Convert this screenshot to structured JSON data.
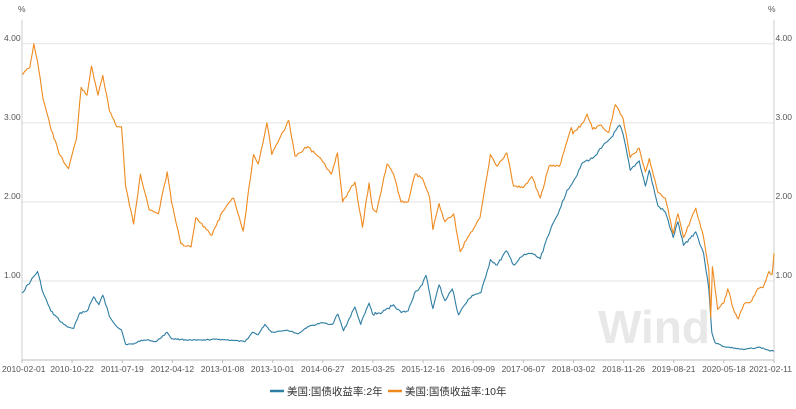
{
  "chart_data": {
    "type": "line",
    "title": "",
    "xlabel": "",
    "ylabel": "",
    "y_unit_left": "%",
    "y_unit_right": "%",
    "ylim": [
      0,
      4.2
    ],
    "y_ticks": [
      {
        "value": 1.0,
        "label": "1.00"
      },
      {
        "value": 2.0,
        "label": "2.00"
      },
      {
        "value": 3.0,
        "label": "3.00"
      },
      {
        "value": 4.0,
        "label": "4.00"
      }
    ],
    "x_range": [
      "2010-02-01",
      "2021-02-11"
    ],
    "x_ticks": [
      "2010-02-01",
      "2010-10-22",
      "2011-07-19",
      "2012-04-12",
      "2013-01-08",
      "2013-10-01",
      "2014-06-27",
      "2015-03-25",
      "2015-12-16",
      "2016-09-09",
      "2017-06-07",
      "2018-03-02",
      "2018-11-26",
      "2019-08-21",
      "2020-05-18",
      "2021-02-11"
    ],
    "grid": true,
    "legend_position": "bottom",
    "watermark": "Wind",
    "series": [
      {
        "name": "美国:国债收益率:2年",
        "color": "#2e7ea3",
        "points": [
          [
            "2010-02-01",
            0.85
          ],
          [
            "2010-03-20",
            1.0
          ],
          [
            "2010-04-25",
            1.12
          ],
          [
            "2010-05-25",
            0.85
          ],
          [
            "2010-07-05",
            0.62
          ],
          [
            "2010-08-20",
            0.5
          ],
          [
            "2010-10-01",
            0.42
          ],
          [
            "2010-11-05",
            0.4
          ],
          [
            "2010-12-10",
            0.6
          ],
          [
            "2011-01-15",
            0.62
          ],
          [
            "2011-02-20",
            0.8
          ],
          [
            "2011-03-20",
            0.7
          ],
          [
            "2011-04-10",
            0.82
          ],
          [
            "2011-05-15",
            0.55
          ],
          [
            "2011-06-25",
            0.42
          ],
          [
            "2011-07-19",
            0.38
          ],
          [
            "2011-08-10",
            0.2
          ],
          [
            "2011-09-20",
            0.2
          ],
          [
            "2011-11-01",
            0.25
          ],
          [
            "2011-12-15",
            0.25
          ],
          [
            "2012-01-20",
            0.23
          ],
          [
            "2012-03-20",
            0.35
          ],
          [
            "2012-04-12",
            0.27
          ],
          [
            "2012-06-01",
            0.26
          ],
          [
            "2012-08-01",
            0.25
          ],
          [
            "2012-09-25",
            0.25
          ],
          [
            "2012-11-15",
            0.26
          ],
          [
            "2013-01-08",
            0.26
          ],
          [
            "2013-03-01",
            0.25
          ],
          [
            "2013-05-10",
            0.23
          ],
          [
            "2013-06-20",
            0.35
          ],
          [
            "2013-07-20",
            0.32
          ],
          [
            "2013-08-25",
            0.45
          ],
          [
            "2013-10-01",
            0.35
          ],
          [
            "2013-12-20",
            0.38
          ],
          [
            "2014-02-20",
            0.33
          ],
          [
            "2014-04-10",
            0.42
          ],
          [
            "2014-06-27",
            0.47
          ],
          [
            "2014-08-20",
            0.45
          ],
          [
            "2014-09-20",
            0.58
          ],
          [
            "2014-10-20",
            0.37
          ],
          [
            "2014-12-20",
            0.67
          ],
          [
            "2015-01-20",
            0.45
          ],
          [
            "2015-03-06",
            0.72
          ],
          [
            "2015-03-25",
            0.58
          ],
          [
            "2015-05-15",
            0.6
          ],
          [
            "2015-07-15",
            0.7
          ],
          [
            "2015-08-25",
            0.6
          ],
          [
            "2015-10-01",
            0.62
          ],
          [
            "2015-11-05",
            0.85
          ],
          [
            "2015-12-16",
            0.95
          ],
          [
            "2016-01-05",
            1.07
          ],
          [
            "2016-02-11",
            0.65
          ],
          [
            "2016-03-15",
            0.95
          ],
          [
            "2016-04-15",
            0.75
          ],
          [
            "2016-05-25",
            0.9
          ],
          [
            "2016-06-27",
            0.57
          ],
          [
            "2016-07-25",
            0.68
          ],
          [
            "2016-09-09",
            0.82
          ],
          [
            "2016-10-25",
            0.85
          ],
          [
            "2016-11-20",
            1.05
          ],
          [
            "2016-12-15",
            1.27
          ],
          [
            "2017-01-20",
            1.2
          ],
          [
            "2017-03-10",
            1.38
          ],
          [
            "2017-04-20",
            1.2
          ],
          [
            "2017-06-07",
            1.32
          ],
          [
            "2017-07-25",
            1.35
          ],
          [
            "2017-09-08",
            1.28
          ],
          [
            "2017-10-15",
            1.55
          ],
          [
            "2017-12-20",
            1.9
          ],
          [
            "2018-01-30",
            2.15
          ],
          [
            "2018-03-02",
            2.25
          ],
          [
            "2018-04-25",
            2.5
          ],
          [
            "2018-06-15",
            2.55
          ],
          [
            "2018-08-01",
            2.68
          ],
          [
            "2018-09-25",
            2.82
          ],
          [
            "2018-11-08",
            2.97
          ],
          [
            "2018-11-26",
            2.85
          ],
          [
            "2019-01-03",
            2.4
          ],
          [
            "2019-02-20",
            2.52
          ],
          [
            "2019-03-25",
            2.2
          ],
          [
            "2019-04-15",
            2.4
          ],
          [
            "2019-05-31",
            1.95
          ],
          [
            "2019-07-10",
            1.87
          ],
          [
            "2019-08-21",
            1.55
          ],
          [
            "2019-09-15",
            1.75
          ],
          [
            "2019-10-15",
            1.45
          ],
          [
            "2019-12-20",
            1.62
          ],
          [
            "2020-01-31",
            1.35
          ],
          [
            "2020-02-28",
            0.9
          ],
          [
            "2020-03-15",
            0.35
          ],
          [
            "2020-04-01",
            0.22
          ],
          [
            "2020-05-18",
            0.17
          ],
          [
            "2020-07-15",
            0.15
          ],
          [
            "2020-09-01",
            0.13
          ],
          [
            "2020-10-15",
            0.15
          ],
          [
            "2020-12-01",
            0.16
          ],
          [
            "2021-01-15",
            0.12
          ],
          [
            "2021-02-11",
            0.11
          ]
        ]
      },
      {
        "name": "美国:国债收益率:10年",
        "color": "#ee8a1e",
        "points": [
          [
            "2010-02-01",
            3.62
          ],
          [
            "2010-03-15",
            3.7
          ],
          [
            "2010-04-05",
            4.0
          ],
          [
            "2010-04-25",
            3.78
          ],
          [
            "2010-05-25",
            3.3
          ],
          [
            "2010-07-01",
            2.97
          ],
          [
            "2010-08-20",
            2.6
          ],
          [
            "2010-10-08",
            2.42
          ],
          [
            "2010-10-22",
            2.55
          ],
          [
            "2010-11-20",
            2.8
          ],
          [
            "2010-12-15",
            3.45
          ],
          [
            "2011-01-15",
            3.35
          ],
          [
            "2011-02-08",
            3.72
          ],
          [
            "2011-03-15",
            3.35
          ],
          [
            "2011-04-10",
            3.6
          ],
          [
            "2011-05-15",
            3.15
          ],
          [
            "2011-06-25",
            2.95
          ],
          [
            "2011-07-19",
            2.95
          ],
          [
            "2011-08-10",
            2.2
          ],
          [
            "2011-09-22",
            1.72
          ],
          [
            "2011-10-28",
            2.35
          ],
          [
            "2011-12-15",
            1.9
          ],
          [
            "2012-02-01",
            1.85
          ],
          [
            "2012-03-20",
            2.38
          ],
          [
            "2012-04-12",
            2.0
          ],
          [
            "2012-06-01",
            1.47
          ],
          [
            "2012-07-25",
            1.43
          ],
          [
            "2012-08-20",
            1.8
          ],
          [
            "2012-10-15",
            1.65
          ],
          [
            "2012-11-15",
            1.58
          ],
          [
            "2013-01-08",
            1.87
          ],
          [
            "2013-03-10",
            2.05
          ],
          [
            "2013-05-01",
            1.63
          ],
          [
            "2013-06-25",
            2.6
          ],
          [
            "2013-07-20",
            2.48
          ],
          [
            "2013-09-05",
            3.0
          ],
          [
            "2013-10-01",
            2.6
          ],
          [
            "2013-12-31",
            3.03
          ],
          [
            "2014-02-03",
            2.58
          ],
          [
            "2014-04-10",
            2.7
          ],
          [
            "2014-06-27",
            2.52
          ],
          [
            "2014-08-15",
            2.35
          ],
          [
            "2014-09-18",
            2.62
          ],
          [
            "2014-10-15",
            2.0
          ],
          [
            "2014-12-20",
            2.25
          ],
          [
            "2015-01-30",
            1.68
          ],
          [
            "2015-03-06",
            2.24
          ],
          [
            "2015-03-25",
            1.92
          ],
          [
            "2015-04-15",
            1.87
          ],
          [
            "2015-06-10",
            2.48
          ],
          [
            "2015-07-15",
            2.35
          ],
          [
            "2015-08-24",
            2.0
          ],
          [
            "2015-10-01",
            2.0
          ],
          [
            "2015-11-08",
            2.35
          ],
          [
            "2015-12-16",
            2.3
          ],
          [
            "2016-01-25",
            2.05
          ],
          [
            "2016-02-11",
            1.65
          ],
          [
            "2016-03-15",
            1.98
          ],
          [
            "2016-04-15",
            1.75
          ],
          [
            "2016-06-01",
            1.85
          ],
          [
            "2016-07-06",
            1.37
          ],
          [
            "2016-08-15",
            1.55
          ],
          [
            "2016-09-09",
            1.63
          ],
          [
            "2016-10-20",
            1.8
          ],
          [
            "2016-12-15",
            2.6
          ],
          [
            "2017-01-20",
            2.45
          ],
          [
            "2017-03-13",
            2.62
          ],
          [
            "2017-04-18",
            2.2
          ],
          [
            "2017-06-07",
            2.18
          ],
          [
            "2017-07-25",
            2.32
          ],
          [
            "2017-09-08",
            2.05
          ],
          [
            "2017-10-25",
            2.45
          ],
          [
            "2017-12-20",
            2.45
          ],
          [
            "2018-02-21",
            2.94
          ],
          [
            "2018-03-02",
            2.86
          ],
          [
            "2018-04-25",
            3.0
          ],
          [
            "2018-05-17",
            3.11
          ],
          [
            "2018-06-15",
            2.92
          ],
          [
            "2018-08-01",
            2.97
          ],
          [
            "2018-09-10",
            2.88
          ],
          [
            "2018-10-15",
            3.23
          ],
          [
            "2018-11-26",
            3.05
          ],
          [
            "2019-01-03",
            2.56
          ],
          [
            "2019-02-20",
            2.68
          ],
          [
            "2019-03-25",
            2.38
          ],
          [
            "2019-04-15",
            2.55
          ],
          [
            "2019-05-31",
            2.12
          ],
          [
            "2019-07-10",
            2.05
          ],
          [
            "2019-08-21",
            1.6
          ],
          [
            "2019-09-15",
            1.85
          ],
          [
            "2019-10-15",
            1.55
          ],
          [
            "2019-12-20",
            1.92
          ],
          [
            "2020-01-31",
            1.55
          ],
          [
            "2020-02-28",
            1.15
          ],
          [
            "2020-03-09",
            0.54
          ],
          [
            "2020-03-18",
            1.18
          ],
          [
            "2020-04-15",
            0.64
          ],
          [
            "2020-05-18",
            0.72
          ],
          [
            "2020-06-08",
            0.9
          ],
          [
            "2020-07-15",
            0.6
          ],
          [
            "2020-08-04",
            0.52
          ],
          [
            "2020-09-01",
            0.7
          ],
          [
            "2020-10-15",
            0.75
          ],
          [
            "2020-11-15",
            0.9
          ],
          [
            "2020-12-15",
            0.92
          ],
          [
            "2021-01-15",
            1.12
          ],
          [
            "2021-02-01",
            1.08
          ],
          [
            "2021-02-11",
            1.35
          ]
        ]
      }
    ]
  }
}
